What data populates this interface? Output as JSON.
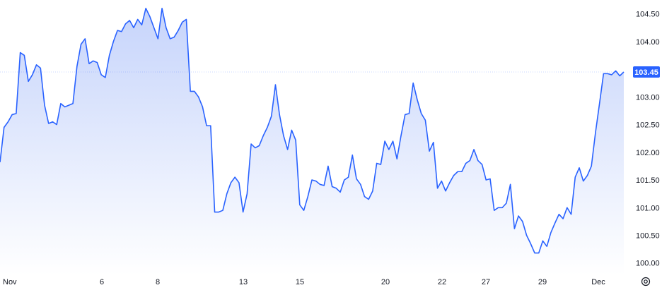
{
  "chart_data": {
    "type": "area",
    "title": "",
    "xlabel": "",
    "ylabel": "",
    "ylim": [
      99.78,
      104.75
    ],
    "x_tick_labels": [
      "Nov",
      "6",
      "8",
      "13",
      "15",
      "20",
      "22",
      "27",
      "29",
      "Dec"
    ],
    "y_tick_labels": [
      "104.50",
      "104.00",
      "103.50",
      "103.00",
      "102.50",
      "102.00",
      "101.50",
      "101.00",
      "100.50",
      "100.00"
    ],
    "y_tick_values": [
      104.5,
      104.0,
      103.5,
      103.0,
      102.5,
      102.0,
      101.5,
      101.0,
      100.5,
      100.0
    ],
    "last_price_label": "103.45",
    "last_price": 103.45,
    "colors": {
      "line": "#2962ff",
      "fill_top": "#c6d4fb",
      "fill_bottom": "#ffffff",
      "price_tag": "#2962ff",
      "text": "#131722"
    },
    "series": [
      {
        "values": [
          101.82,
          102.45,
          102.55,
          102.68,
          102.7,
          103.8,
          103.75,
          103.28,
          103.4,
          103.58,
          103.52,
          102.85,
          102.52,
          102.55,
          102.5,
          102.88,
          102.82,
          102.85,
          102.88,
          103.55,
          103.95,
          104.05,
          103.6,
          103.65,
          103.62,
          103.4,
          103.35,
          103.75,
          104.0,
          104.2,
          104.18,
          104.32,
          104.38,
          104.25,
          104.4,
          104.3,
          104.6,
          104.45,
          104.25,
          104.05,
          104.6,
          104.25,
          104.05,
          104.08,
          104.2,
          104.35,
          104.4,
          103.1,
          103.1,
          103.0,
          102.82,
          102.48,
          102.48,
          100.92,
          100.92,
          100.95,
          101.25,
          101.45,
          101.55,
          101.45,
          100.92,
          101.25,
          102.15,
          102.08,
          102.12,
          102.3,
          102.45,
          102.65,
          103.22,
          102.68,
          102.3,
          102.05,
          102.4,
          102.22,
          101.05,
          100.95,
          101.2,
          101.5,
          101.48,
          101.42,
          101.4,
          101.75,
          101.38,
          101.35,
          101.28,
          101.5,
          101.55,
          101.95,
          101.52,
          101.42,
          101.2,
          101.15,
          101.3,
          101.8,
          101.78,
          102.2,
          102.05,
          102.2,
          101.88,
          102.3,
          102.68,
          102.7,
          103.25,
          102.95,
          102.7,
          102.58,
          102.02,
          102.18,
          101.35,
          101.48,
          101.3,
          101.45,
          101.58,
          101.65,
          101.65,
          101.8,
          101.85,
          102.05,
          101.85,
          101.78,
          101.5,
          101.52,
          100.95,
          101.0,
          101.0,
          101.08,
          101.42,
          100.62,
          100.85,
          100.75,
          100.5,
          100.35,
          100.18,
          100.18,
          100.4,
          100.3,
          100.55,
          100.72,
          100.88,
          100.8,
          101.0,
          100.88,
          101.55,
          101.72,
          101.48,
          101.58,
          101.75,
          102.35,
          102.88,
          103.42,
          103.42,
          103.4,
          103.47,
          103.38,
          103.45
        ]
      }
    ]
  },
  "settings": {
    "icon": "gear-icon"
  }
}
